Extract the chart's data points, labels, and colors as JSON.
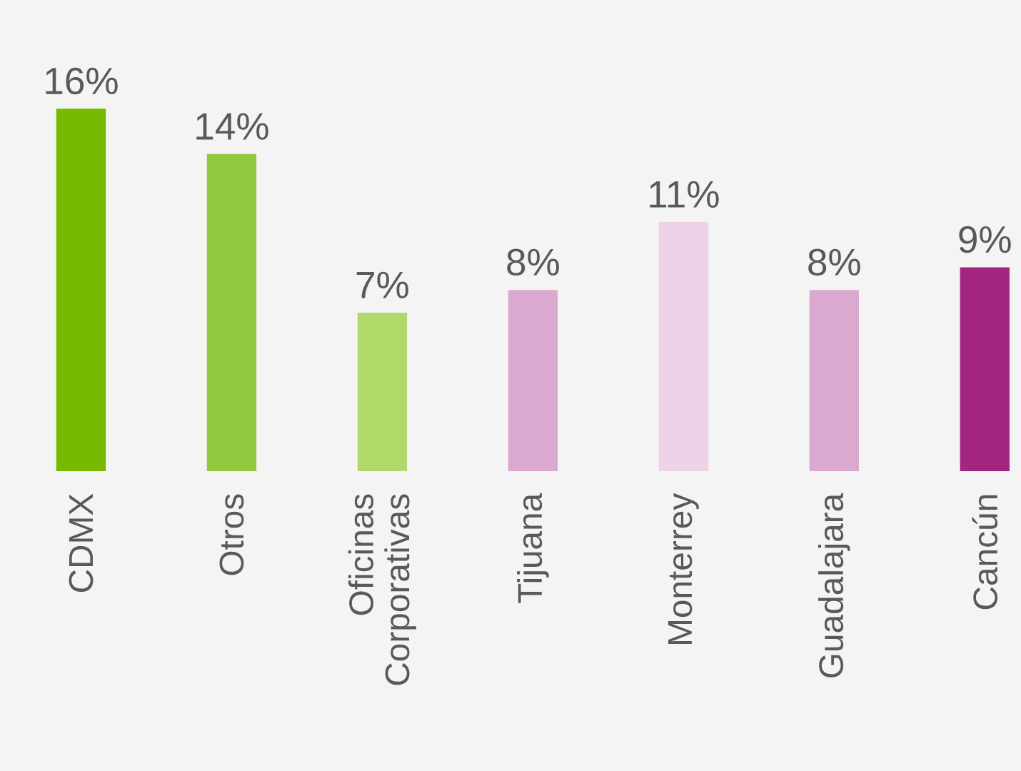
{
  "chart_data": {
    "type": "bar",
    "categories": [
      "CDMX",
      "Otros",
      "Oficinas Corporativas",
      "Tijuana",
      "Monterrey",
      "Guadalajara",
      "Cancún"
    ],
    "values": [
      16,
      14,
      7,
      8,
      11,
      8,
      9
    ],
    "value_labels": [
      "16%",
      "14%",
      "7%",
      "8%",
      "11%",
      "8%",
      "9%"
    ],
    "colors": [
      "#77b900",
      "#92c83e",
      "#b0d96a",
      "#dba9cf",
      "#ecd3e7",
      "#dba9cf",
      "#a2267f"
    ]
  }
}
